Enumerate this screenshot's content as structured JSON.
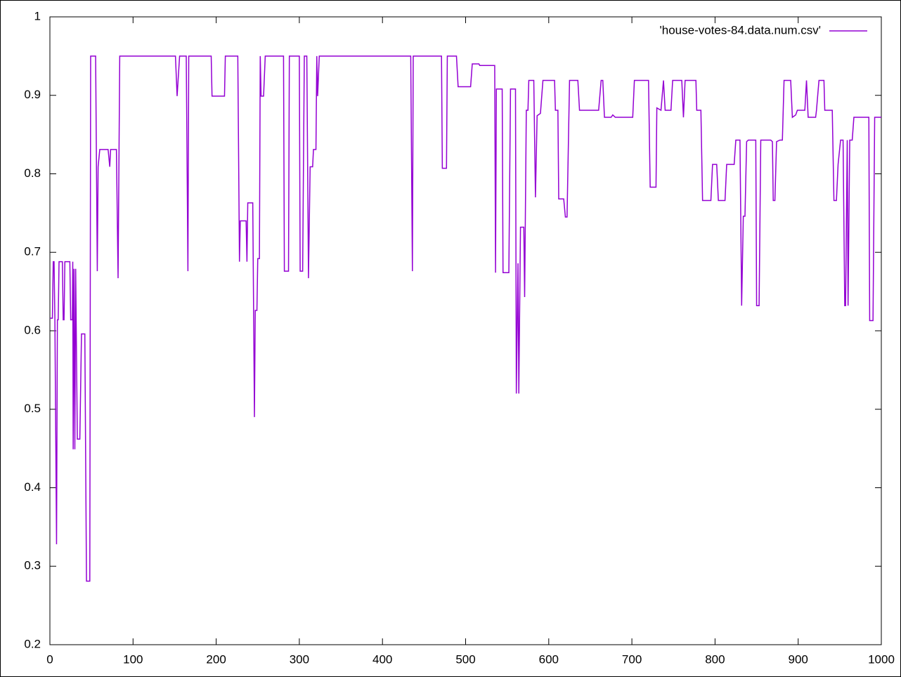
{
  "chart_data": {
    "type": "line",
    "x": [
      0,
      3,
      4,
      5,
      6,
      8,
      9,
      10,
      11,
      15,
      16,
      17,
      18,
      24,
      25,
      27,
      27.5,
      28,
      29,
      30,
      31,
      33,
      36,
      38,
      42,
      44,
      48,
      49,
      55,
      57,
      58,
      60,
      70,
      72,
      73,
      80,
      82,
      84,
      151,
      153,
      156,
      164,
      166,
      167,
      194,
      195,
      210,
      211,
      226,
      228,
      229,
      236,
      237,
      238,
      244,
      246,
      247,
      249,
      250,
      252,
      253,
      254,
      257,
      259,
      281,
      282,
      287,
      288,
      300,
      301,
      304,
      306,
      309,
      311,
      313,
      316,
      317,
      320,
      321,
      322,
      324,
      434,
      436,
      437,
      471,
      472,
      477,
      478,
      489,
      491,
      506,
      508,
      516,
      517,
      535,
      536,
      537,
      544,
      545,
      552,
      554,
      560,
      561,
      563,
      564,
      566,
      570,
      571,
      573,
      575,
      576,
      582,
      584,
      586,
      590,
      593,
      607,
      608,
      611,
      612,
      618,
      620,
      622,
      625,
      635,
      637,
      660,
      663,
      665,
      667,
      675,
      677,
      680,
      701,
      703,
      720,
      722,
      729,
      730,
      735,
      738,
      740,
      747,
      749,
      760,
      762,
      764,
      777,
      778,
      783,
      785,
      795,
      797,
      802,
      804,
      812,
      814,
      823,
      825,
      830,
      832,
      834,
      836,
      838,
      840,
      849,
      850,
      853,
      855,
      867,
      869,
      870,
      872,
      874,
      878,
      881,
      883,
      891,
      893,
      897,
      899,
      908,
      910,
      912,
      921,
      922,
      925,
      931,
      932,
      941,
      943,
      946,
      948,
      951,
      954,
      956,
      957,
      959,
      960,
      962,
      965,
      967,
      985,
      986,
      990,
      992,
      1000
    ],
    "series": [
      {
        "name": "'house-votes-84.data.num.csv'",
        "color": "#9400d3",
        "values": [
          0.616,
          0.616,
          0.688,
          0.688,
          0.614,
          0.328,
          0.614,
          0.614,
          0.688,
          0.688,
          0.614,
          0.614,
          0.688,
          0.688,
          0.614,
          0.614,
          0.688,
          0.449,
          0.679,
          0.449,
          0.679,
          0.462,
          0.462,
          0.596,
          0.596,
          0.281,
          0.281,
          0.95,
          0.95,
          0.676,
          0.809,
          0.831,
          0.831,
          0.809,
          0.831,
          0.831,
          0.667,
          0.95,
          0.95,
          0.899,
          0.95,
          0.95,
          0.676,
          0.95,
          0.95,
          0.899,
          0.899,
          0.95,
          0.95,
          0.688,
          0.74,
          0.74,
          0.688,
          0.763,
          0.763,
          0.49,
          0.626,
          0.626,
          0.692,
          0.692,
          0.95,
          0.899,
          0.899,
          0.95,
          0.95,
          0.676,
          0.676,
          0.95,
          0.95,
          0.676,
          0.676,
          0.95,
          0.95,
          0.667,
          0.809,
          0.809,
          0.831,
          0.831,
          0.95,
          0.899,
          0.95,
          0.95,
          0.676,
          0.95,
          0.95,
          0.807,
          0.807,
          0.95,
          0.95,
          0.911,
          0.911,
          0.94,
          0.94,
          0.938,
          0.938,
          0.674,
          0.908,
          0.908,
          0.674,
          0.674,
          0.908,
          0.908,
          0.52,
          0.686,
          0.52,
          0.732,
          0.732,
          0.643,
          0.881,
          0.881,
          0.919,
          0.919,
          0.77,
          0.874,
          0.877,
          0.919,
          0.919,
          0.881,
          0.881,
          0.768,
          0.768,
          0.745,
          0.745,
          0.919,
          0.919,
          0.881,
          0.881,
          0.919,
          0.919,
          0.872,
          0.872,
          0.875,
          0.872,
          0.872,
          0.919,
          0.919,
          0.783,
          0.783,
          0.884,
          0.881,
          0.919,
          0.881,
          0.881,
          0.919,
          0.919,
          0.872,
          0.919,
          0.919,
          0.881,
          0.881,
          0.766,
          0.766,
          0.812,
          0.812,
          0.766,
          0.766,
          0.812,
          0.812,
          0.843,
          0.843,
          0.632,
          0.746,
          0.746,
          0.841,
          0.843,
          0.843,
          0.632,
          0.632,
          0.843,
          0.843,
          0.841,
          0.766,
          0.766,
          0.841,
          0.843,
          0.843,
          0.919,
          0.919,
          0.872,
          0.875,
          0.881,
          0.881,
          0.919,
          0.872,
          0.872,
          0.881,
          0.919,
          0.919,
          0.881,
          0.881,
          0.766,
          0.766,
          0.812,
          0.843,
          0.843,
          0.632,
          0.632,
          0.843,
          0.632,
          0.843,
          0.843,
          0.872,
          0.872,
          0.613,
          0.613,
          0.872,
          0.872
        ]
      }
    ],
    "xlim": [
      0,
      1000
    ],
    "xticks": [
      0,
      100,
      200,
      300,
      400,
      500,
      600,
      700,
      800,
      900,
      1000
    ],
    "ylim": [
      0.2,
      1
    ],
    "yticks": [
      0.2,
      0.3,
      0.4,
      0.5,
      0.6,
      0.7,
      0.8,
      0.9,
      1
    ],
    "legend": "top-right"
  }
}
